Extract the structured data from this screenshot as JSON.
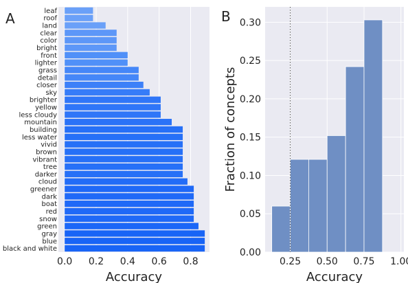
{
  "chart_data": [
    {
      "panel_label": "A",
      "type": "bar",
      "orientation": "horizontal",
      "xlabel": "Accuracy",
      "xlim": [
        -0.04,
        0.92
      ],
      "xticks": [
        "0.0",
        "0.2",
        "0.4",
        "0.6",
        "0.8"
      ],
      "xtick_values": [
        0,
        0.2,
        0.4,
        0.6,
        0.8
      ],
      "grid": true,
      "categories": [
        "leaf",
        "roof",
        "land",
        "clear",
        "color",
        "bright",
        "front",
        "lighter",
        "grass",
        "detail",
        "closer",
        "sky",
        "brighter",
        "yellow",
        "less cloudy",
        "mountain",
        "building",
        "less water",
        "vivid",
        "brown",
        "vibrant",
        "tree",
        "darker",
        "cloud",
        "greener",
        "dark",
        "boat",
        "red",
        "snow",
        "green",
        "gray",
        "blue",
        "black and white"
      ],
      "values": [
        0.18,
        0.18,
        0.26,
        0.33,
        0.33,
        0.33,
        0.4,
        0.4,
        0.47,
        0.47,
        0.5,
        0.54,
        0.61,
        0.61,
        0.61,
        0.68,
        0.75,
        0.75,
        0.75,
        0.75,
        0.75,
        0.75,
        0.75,
        0.78,
        0.82,
        0.82,
        0.82,
        0.82,
        0.82,
        0.85,
        0.89,
        0.89,
        0.89
      ],
      "colors": [
        "#6aa0f8",
        "#6aa0f8",
        "#6aa0f8",
        "#5d97f8",
        "#5d97f8",
        "#5d97f8",
        "#5090f8",
        "#5090f8",
        "#4587f8",
        "#4587f8",
        "#3d80f8",
        "#367cf8",
        "#2f76f8",
        "#2f76f8",
        "#2f76f8",
        "#2a72f7",
        "#2670f7",
        "#2670f7",
        "#2670f7",
        "#2670f7",
        "#2670f7",
        "#2670f7",
        "#2670f7",
        "#226cf7",
        "#1f69f7",
        "#1f69f7",
        "#1f69f7",
        "#1f69f7",
        "#1f69f7",
        "#1c67f7",
        "#1864f6",
        "#1864f6",
        "#1864f6"
      ]
    },
    {
      "panel_label": "B",
      "type": "bar",
      "subtype": "histogram",
      "xlabel": "Accuracy",
      "ylabel": "Fraction of concepts",
      "xlim": [
        0.08,
        1.02
      ],
      "ylim": [
        0,
        0.32
      ],
      "xticks": [
        "0.25",
        "0.50",
        "0.75",
        "1.00"
      ],
      "xtick_values": [
        0.25,
        0.5,
        0.75,
        1.0
      ],
      "yticks": [
        "0.00",
        "0.05",
        "0.10",
        "0.15",
        "0.20",
        "0.25",
        "0.30"
      ],
      "ytick_values": [
        0,
        0.05,
        0.1,
        0.15,
        0.2,
        0.25,
        0.3
      ],
      "bins": [
        [
          0.125,
          0.25
        ],
        [
          0.25,
          0.375
        ],
        [
          0.375,
          0.5
        ],
        [
          0.5,
          0.625
        ],
        [
          0.625,
          0.75
        ],
        [
          0.75,
          0.875
        ]
      ],
      "values": [
        0.06,
        0.121,
        0.121,
        0.152,
        0.242,
        0.303
      ],
      "reference_line_x": 0.25,
      "bar_color": "#6f8fc4",
      "grid": true
    }
  ]
}
